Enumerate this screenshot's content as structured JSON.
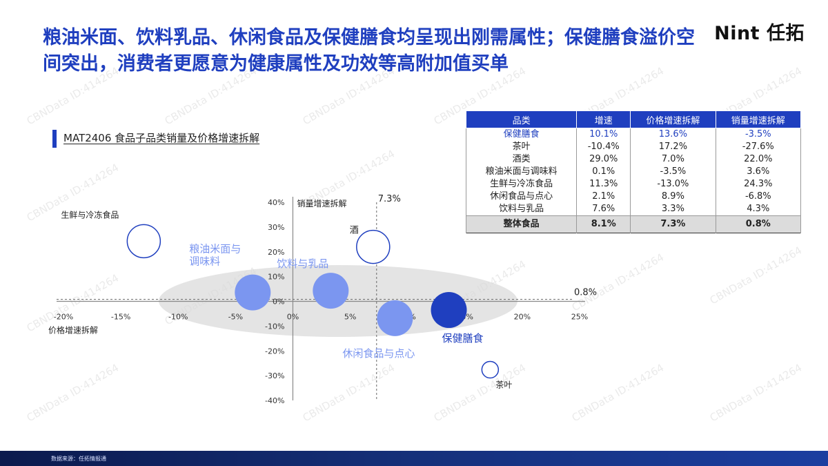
{
  "header": {
    "title": "粮油米面、饮料乳品、休闲食品及保健膳食均呈现出刚需属性；保健膳食溢价空间突出，消费者更愿意为健康属性及功效等高附加值买单",
    "logo": "Nint 任拓"
  },
  "subtitle": "MAT2406 食品子品类销量及价格增速拆解",
  "chart_data": {
    "type": "scatter",
    "title": "MAT2406 食品子品类销量及价格增速拆解",
    "xlabel": "价格增速拆解",
    "ylabel": "销量增速拆解",
    "xlim": [
      -0.2,
      0.25
    ],
    "ylim": [
      -0.4,
      0.4
    ],
    "x_ticks": [
      "-20%",
      "-15%",
      "-10%",
      "-5%",
      "0%",
      "5%",
      "10%",
      "15%",
      "20%",
      "25%"
    ],
    "y_ticks": [
      "40%",
      "30%",
      "20%",
      "10%",
      "0%",
      "-10%",
      "-20%",
      "-30%",
      "-40%"
    ],
    "reference_lines": {
      "x": 0.073,
      "x_label": "7.3%",
      "y": 0.008,
      "y_label": "0.8%"
    },
    "points": [
      {
        "label": "生鲜与冷冻食品",
        "x": -0.13,
        "y": 0.243,
        "size": 11.3,
        "style": "outline"
      },
      {
        "label": "酒",
        "x": 0.07,
        "y": 0.22,
        "size": 29.0,
        "style": "outline"
      },
      {
        "label": "粮油米面与调味料",
        "x": -0.035,
        "y": 0.036,
        "size": 0.1,
        "style": "light"
      },
      {
        "label": "饮料与乳品",
        "x": 0.033,
        "y": 0.043,
        "size": 7.6,
        "style": "light"
      },
      {
        "label": "休闲食品与点心",
        "x": 0.089,
        "y": -0.068,
        "size": 2.1,
        "style": "light"
      },
      {
        "label": "保健膳食",
        "x": 0.136,
        "y": -0.035,
        "size": 10.1,
        "style": "dark"
      },
      {
        "label": "茶叶",
        "x": 0.172,
        "y": -0.276,
        "size": -10.4,
        "style": "outline"
      }
    ]
  },
  "table": {
    "headers": [
      "品类",
      "增速",
      "价格增速拆解",
      "销量增速拆解"
    ],
    "rows": [
      [
        "保健膳食",
        "10.1%",
        "13.6%",
        "-3.5%"
      ],
      [
        "茶叶",
        "-10.4%",
        "17.2%",
        "-27.6%"
      ],
      [
        "酒类",
        "29.0%",
        "7.0%",
        "22.0%"
      ],
      [
        "粮油米面与调味料",
        "0.1%",
        "-3.5%",
        "3.6%"
      ],
      [
        "生鲜与冷冻食品",
        "11.3%",
        "-13.0%",
        "24.3%"
      ],
      [
        "休闲食品与点心",
        "2.1%",
        "8.9%",
        "-6.8%"
      ],
      [
        "饮料与乳品",
        "7.6%",
        "3.3%",
        "4.3%"
      ]
    ],
    "total": [
      "整体食品",
      "8.1%",
      "7.3%",
      "0.8%"
    ]
  },
  "footer": {
    "source": "数据来源：任拓情报通"
  },
  "watermark": "CBNData ID:414264",
  "colors": {
    "accent": "#1f3fbf",
    "light_bubble": "#7b96f0",
    "dark_bubble": "#1f3fbf",
    "ellipse": "#d9d9d9"
  }
}
